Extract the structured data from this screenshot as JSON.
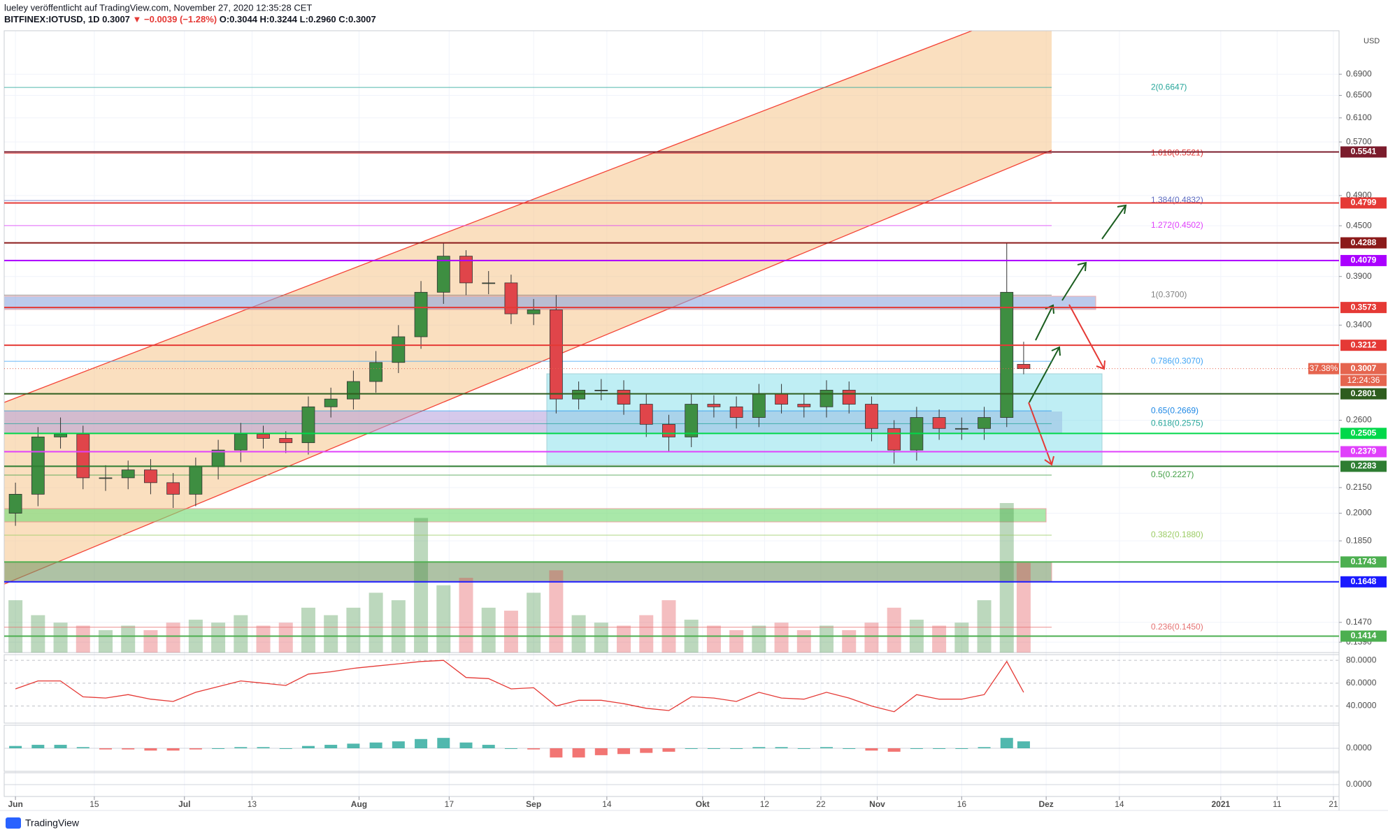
{
  "header": {
    "publisher": "lueley veröffentlicht auf TradingView.com, November 27, 2020 12:35:28 CET",
    "symbol": "BITFINEX:IOTUSD, 1D",
    "last": "0.3007",
    "change": "▼ −0.0039 (−1.28%)",
    "ohlc": "O:0.3044 H:0.3244 L:0.2960 C:0.3007"
  },
  "footer": "TradingView",
  "chart_data": {
    "type": "candlestick",
    "currency": "USD",
    "log_scale": true,
    "grid": true,
    "up_color": "#3e8e41",
    "down_color": "#e0454a",
    "x": [
      "2020-06-01",
      "2020-06-05",
      "2020-06-09",
      "2020-06-13",
      "2020-06-17",
      "2020-06-21",
      "2020-06-25",
      "2020-06-29",
      "2020-07-03",
      "2020-07-07",
      "2020-07-11",
      "2020-07-15",
      "2020-07-19",
      "2020-07-23",
      "2020-07-27",
      "2020-07-31",
      "2020-08-04",
      "2020-08-08",
      "2020-08-12",
      "2020-08-16",
      "2020-08-20",
      "2020-08-24",
      "2020-08-28",
      "2020-09-01",
      "2020-09-05",
      "2020-09-09",
      "2020-09-13",
      "2020-09-17",
      "2020-09-21",
      "2020-09-25",
      "2020-09-29",
      "2020-10-03",
      "2020-10-07",
      "2020-10-11",
      "2020-10-15",
      "2020-10-19",
      "2020-10-23",
      "2020-10-27",
      "2020-10-31",
      "2020-11-04",
      "2020-11-08",
      "2020-11-12",
      "2020-11-16",
      "2020-11-20",
      "2020-11-24",
      "2020-11-27"
    ],
    "open": [
      0.2,
      0.211,
      0.248,
      0.25,
      0.221,
      0.221,
      0.226,
      0.218,
      0.211,
      0.228,
      0.239,
      0.25,
      0.247,
      0.244,
      0.27,
      0.276,
      0.29,
      0.306,
      0.329,
      0.373,
      0.413,
      0.383,
      0.383,
      0.351,
      0.355,
      0.276,
      0.283,
      0.283,
      0.272,
      0.257,
      0.248,
      0.272,
      0.27,
      0.262,
      0.28,
      0.272,
      0.27,
      0.283,
      0.272,
      0.254,
      0.239,
      0.262,
      0.254,
      0.254,
      0.262,
      0.3044
    ],
    "high": [
      0.218,
      0.255,
      0.262,
      0.256,
      0.229,
      0.232,
      0.233,
      0.224,
      0.234,
      0.246,
      0.258,
      0.256,
      0.252,
      0.278,
      0.285,
      0.299,
      0.316,
      0.34,
      0.385,
      0.428,
      0.42,
      0.396,
      0.392,
      0.366,
      0.37,
      0.29,
      0.292,
      0.291,
      0.28,
      0.264,
      0.28,
      0.279,
      0.278,
      0.288,
      0.288,
      0.28,
      0.291,
      0.29,
      0.278,
      0.26,
      0.27,
      0.268,
      0.262,
      0.27,
      0.428,
      0.3244
    ],
    "low": [
      0.193,
      0.204,
      0.24,
      0.214,
      0.213,
      0.214,
      0.211,
      0.203,
      0.204,
      0.22,
      0.231,
      0.24,
      0.237,
      0.236,
      0.262,
      0.268,
      0.281,
      0.297,
      0.318,
      0.361,
      0.37,
      0.371,
      0.341,
      0.34,
      0.265,
      0.268,
      0.275,
      0.264,
      0.248,
      0.238,
      0.241,
      0.262,
      0.254,
      0.255,
      0.265,
      0.262,
      0.262,
      0.265,
      0.245,
      0.23,
      0.232,
      0.246,
      0.246,
      0.246,
      0.255,
      0.296
    ],
    "close": [
      0.211,
      0.248,
      0.25,
      0.221,
      0.221,
      0.226,
      0.218,
      0.211,
      0.228,
      0.239,
      0.25,
      0.247,
      0.244,
      0.27,
      0.276,
      0.29,
      0.306,
      0.329,
      0.373,
      0.413,
      0.383,
      0.383,
      0.351,
      0.355,
      0.276,
      0.283,
      0.283,
      0.272,
      0.257,
      0.248,
      0.272,
      0.27,
      0.262,
      0.28,
      0.272,
      0.27,
      0.283,
      0.272,
      0.254,
      0.239,
      0.262,
      0.254,
      0.254,
      0.262,
      0.373,
      0.3007
    ],
    "xlim": [
      "2020-05-30",
      "2021-01-22"
    ],
    "xticks": [
      {
        "value": "2020-06-01",
        "label": "Jun"
      },
      {
        "value": "2020-06-15",
        "label": "15"
      },
      {
        "value": "2020-07-01",
        "label": "Jul"
      },
      {
        "value": "2020-07-13",
        "label": "13"
      },
      {
        "value": "2020-08-01",
        "label": "Aug"
      },
      {
        "value": "2020-08-17",
        "label": "17"
      },
      {
        "value": "2020-09-01",
        "label": "Sep"
      },
      {
        "value": "2020-09-14",
        "label": "14"
      },
      {
        "value": "2020-10-01",
        "label": "Okt"
      },
      {
        "value": "2020-10-12",
        "label": "12"
      },
      {
        "value": "2020-10-22",
        "label": "22"
      },
      {
        "value": "2020-11-01",
        "label": "Nov"
      },
      {
        "value": "2020-11-16",
        "label": "16"
      },
      {
        "value": "2020-12-01",
        "label": "Dez"
      },
      {
        "value": "2020-12-14",
        "label": "14"
      },
      {
        "value": "2021-01-01",
        "label": "2021"
      },
      {
        "value": "2021-01-11",
        "label": "11"
      },
      {
        "value": "2021-01-21",
        "label": "21"
      }
    ],
    "ylim": [
      0.135,
      0.78
    ],
    "yticks": [
      {
        "value": 0.69,
        "label": "0.6900"
      },
      {
        "value": 0.65,
        "label": "0.6500"
      },
      {
        "value": 0.61,
        "label": "0.6100"
      },
      {
        "value": 0.57,
        "label": "0.5700"
      },
      {
        "value": 0.49,
        "label": "0.4900"
      },
      {
        "value": 0.45,
        "label": "0.4500"
      },
      {
        "value": 0.39,
        "label": "0.3900"
      },
      {
        "value": 0.34,
        "label": "0.3400"
      },
      {
        "value": 0.26,
        "label": "0.2600"
      },
      {
        "value": 0.215,
        "label": "0.2150"
      },
      {
        "value": 0.2,
        "label": "0.2000"
      },
      {
        "value": 0.185,
        "label": "0.1850"
      },
      {
        "value": 0.147,
        "label": "0.1470"
      },
      {
        "value": 0.139,
        "label": "0.1390"
      }
    ],
    "levels": [
      {
        "value": 0.5541,
        "color": "#7b1c2c"
      },
      {
        "value": 0.4799,
        "color": "#e53935"
      },
      {
        "value": 0.4288,
        "color": "#8b1a1a"
      },
      {
        "value": 0.4079,
        "color": "#aa00ff"
      },
      {
        "value": 0.3573,
        "color": "#e53935"
      },
      {
        "value": 0.3212,
        "color": "#e53935"
      },
      {
        "value": 0.2801,
        "color": "#2e5d1e"
      },
      {
        "value": 0.2505,
        "color": "#00d84a"
      },
      {
        "value": 0.2379,
        "color": "#e040fb"
      },
      {
        "value": 0.2283,
        "color": "#2e7d32"
      },
      {
        "value": 0.1743,
        "color": "#4caf50"
      },
      {
        "value": 0.1648,
        "color": "#1a1aff"
      },
      {
        "value": 0.1414,
        "color": "#4caf50"
      }
    ],
    "fibs": [
      {
        "value": 0.6647,
        "label": "2(0.6647)",
        "color": "#26a69a"
      },
      {
        "value": 0.5521,
        "label": "1.618(0.5521)",
        "color": "#e53935"
      },
      {
        "value": 0.4832,
        "label": "1.384(0.4832)",
        "color": "#5c6bc0"
      },
      {
        "value": 0.4502,
        "label": "1.272(0.4502)",
        "color": "#e040fb"
      },
      {
        "value": 0.37,
        "label": "1(0.3700)",
        "color": "#808080"
      },
      {
        "value": 0.307,
        "label": "0.786(0.3070)",
        "color": "#42a5f5"
      },
      {
        "value": 0.2669,
        "label": "0.65(0.2669)",
        "color": "#1e88e5"
      },
      {
        "value": 0.2575,
        "label": "0.618(0.2575)",
        "color": "#26a69a"
      },
      {
        "value": 0.2227,
        "label": "0.5(0.2227)",
        "color": "#43a047"
      },
      {
        "value": 0.188,
        "label": "0.382(0.1880)",
        "color": "#9ccc65"
      },
      {
        "value": 0.145,
        "label": "0.236(0.1450)",
        "color": "#e57373"
      }
    ],
    "current": {
      "value": 0.3007,
      "change_label": "37.38%",
      "countdown": "12:24:36",
      "color": "#e5654f"
    },
    "volume": {
      "ylim": [
        0,
        100
      ],
      "values": [
        35,
        25,
        20,
        18,
        15,
        18,
        15,
        20,
        22,
        20,
        25,
        18,
        20,
        30,
        25,
        30,
        40,
        35,
        90,
        45,
        50,
        30,
        28,
        40,
        55,
        25,
        20,
        18,
        25,
        35,
        22,
        18,
        15,
        18,
        20,
        15,
        18,
        15,
        20,
        30,
        22,
        18,
        20,
        35,
        100,
        60
      ]
    },
    "rsi": {
      "color": "#e53935",
      "ylim": [
        25,
        85
      ],
      "yticks": [
        {
          "value": 80,
          "label": "80.0000"
        },
        {
          "value": 60,
          "label": "60.0000"
        },
        {
          "value": 40,
          "label": "40.0000"
        }
      ],
      "values": [
        55,
        62,
        62,
        48,
        47,
        50,
        46,
        44,
        52,
        57,
        62,
        60,
        58,
        68,
        70,
        73,
        75,
        77,
        79,
        80,
        65,
        64,
        55,
        56,
        40,
        45,
        45,
        42,
        38,
        36,
        48,
        47,
        44,
        52,
        47,
        46,
        52,
        47,
        40,
        35,
        50,
        46,
        46,
        50,
        79,
        52
      ]
    },
    "macd": {
      "ylim": [
        -0.02,
        0.02
      ],
      "yticks": [
        {
          "value": 0,
          "label": "0.0000"
        }
      ],
      "values": [
        0.002,
        0.003,
        0.003,
        0.001,
        -0.001,
        -0.001,
        -0.002,
        -0.002,
        -0.001,
        0,
        0.001,
        0.001,
        0,
        0.002,
        0.003,
        0.004,
        0.005,
        0.006,
        0.008,
        0.009,
        0.005,
        0.003,
        0,
        -0.001,
        -0.008,
        -0.008,
        -0.006,
        -0.005,
        -0.004,
        -0.003,
        0,
        0,
        0,
        0.001,
        0.001,
        0,
        0.001,
        0,
        -0.002,
        -0.003,
        0,
        0,
        0,
        0.001,
        0.009,
        0.006
      ]
    },
    "osc": {
      "ylim": [
        -1,
        1
      ],
      "yticks": [
        {
          "value": 0,
          "label": "0.0000"
        }
      ]
    }
  }
}
